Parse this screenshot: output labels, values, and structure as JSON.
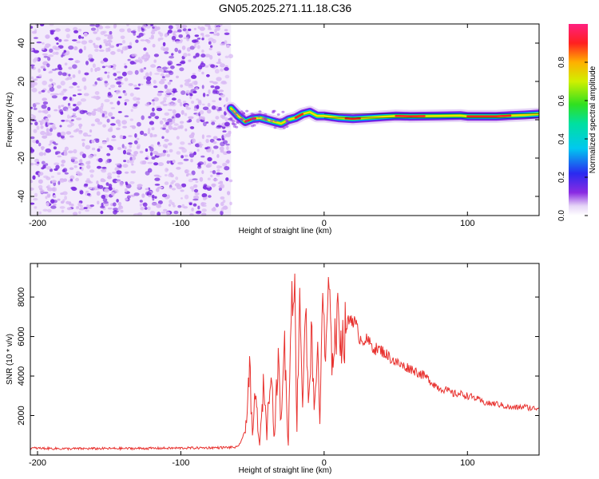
{
  "title": "GN05.2025.271.11.18.C36",
  "colors": {
    "snr_line": "#e8322f",
    "noise": "#7a2ae0",
    "noise_light": "#d8b8f4",
    "axis": "#000000"
  },
  "chart_data": [
    {
      "type": "heatmap",
      "name": "spectrogram",
      "title": "GN05.2025.271.11.18.C36",
      "xlabel": "Height of straight line (km)",
      "ylabel": "Frequency (Hz)",
      "xlim": [
        -205,
        150
      ],
      "ylim": [
        -50,
        50
      ],
      "xticks": [
        -200,
        -100,
        0,
        100
      ],
      "yticks": [
        -40,
        -20,
        0,
        20,
        40
      ],
      "noise_region_x": [
        -205,
        -65
      ],
      "ridge_track": {
        "x": [
          -65,
          -60,
          -55,
          -50,
          -45,
          -40,
          -35,
          -30,
          -25,
          -20,
          -15,
          -10,
          -5,
          0,
          10,
          20,
          30,
          40,
          50,
          60,
          80,
          95,
          100,
          120,
          140,
          150
        ],
        "freq_hz": [
          6,
          2,
          -1,
          0.5,
          1,
          0,
          -1,
          -2,
          0,
          1,
          3,
          4,
          2,
          2,
          1,
          0.5,
          1,
          1.5,
          2,
          1.8,
          2,
          2.2,
          1.8,
          1.8,
          2.5,
          3
        ]
      },
      "colorbar": {
        "label": "Normalized spectral amplitude",
        "range": [
          0,
          1
        ],
        "ticks": [
          "0.0",
          "0.2",
          "0.4",
          "0.6",
          "0.8"
        ],
        "colormap": "rainbow (violet to red)"
      }
    },
    {
      "type": "line",
      "name": "snr",
      "xlabel": "Height of straight line (km)",
      "ylabel": "SNR (10 * v/v)",
      "xlim": [
        -205,
        150
      ],
      "ylim": [
        0,
        9700
      ],
      "xticks": [
        -200,
        -100,
        0,
        100
      ],
      "yticks": [
        2000,
        4000,
        6000,
        8000
      ],
      "series": [
        {
          "name": "SNR",
          "x": [
            -205,
            -180,
            -150,
            -120,
            -90,
            -70,
            -60,
            -55,
            -52,
            -50,
            -48,
            -45,
            -42,
            -40,
            -37,
            -35,
            -32,
            -30,
            -28,
            -25,
            -23,
            -21,
            -19,
            -17,
            -15,
            -13,
            -11,
            -9,
            -7,
            -5,
            -3,
            -1,
            1,
            3,
            5,
            8,
            10,
            13,
            16,
            19,
            22,
            25,
            30,
            35,
            40,
            45,
            50,
            55,
            60,
            65,
            70,
            75,
            80,
            85,
            90,
            95,
            100,
            105,
            110,
            115,
            120,
            125,
            130,
            135,
            140,
            145,
            150
          ],
          "values": [
            350,
            320,
            330,
            340,
            360,
            380,
            400,
            1200,
            4500,
            800,
            3200,
            400,
            3800,
            1000,
            5200,
            800,
            4800,
            1500,
            6200,
            400,
            8200,
            9600,
            1500,
            8500,
            2500,
            7800,
            2200,
            6500,
            2000,
            5800,
            1500,
            9000,
            4000,
            8800,
            5000,
            6200,
            6800,
            5800,
            6600,
            7000,
            6600,
            5900,
            5800,
            5400,
            5300,
            5000,
            4700,
            4500,
            4400,
            4200,
            4000,
            3700,
            3400,
            3300,
            3100,
            3100,
            3000,
            2900,
            2700,
            2600,
            2600,
            2500,
            2400,
            2400,
            2450,
            2350,
            2400
          ]
        }
      ]
    }
  ]
}
